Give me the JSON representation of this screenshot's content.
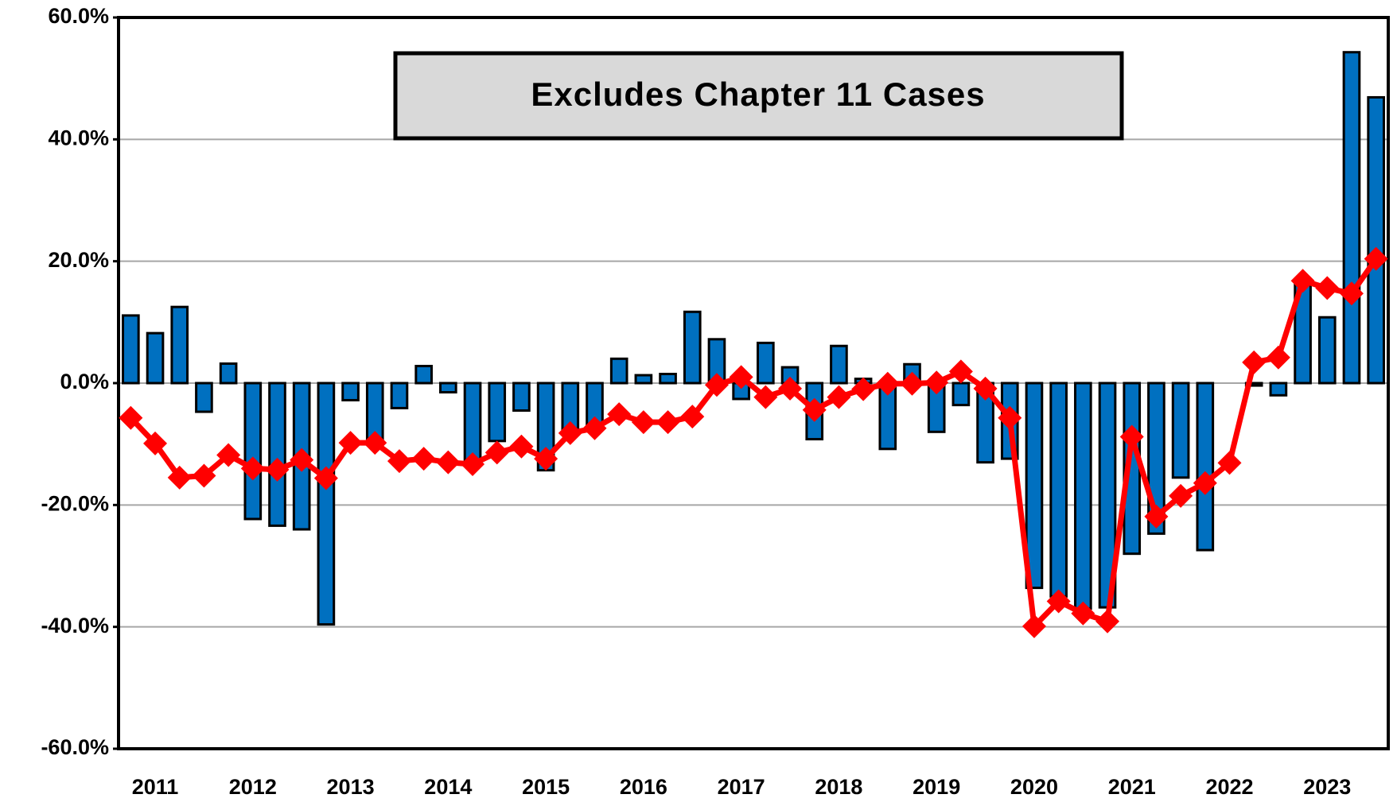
{
  "chart_data": {
    "type": "bar_line",
    "annotation": "Excludes Chapter 11 Cases",
    "categories": [
      null,
      "2011",
      null,
      null,
      null,
      "2012",
      null,
      null,
      null,
      "2013",
      null,
      null,
      null,
      "2014",
      null,
      null,
      null,
      "2015",
      null,
      null,
      null,
      "2016",
      null,
      null,
      null,
      "2017",
      null,
      null,
      null,
      "2018",
      null,
      null,
      null,
      "2019",
      null,
      null,
      null,
      "2020",
      null,
      null,
      null,
      "2021",
      null,
      null,
      null,
      "2022",
      null,
      null,
      null,
      "2023",
      null,
      null
    ],
    "series": [
      {
        "type": "bar",
        "color": "#0070c0",
        "values": [
          11.1,
          8.2,
          12.5,
          -4.7,
          3.2,
          -22.3,
          -23.4,
          -24,
          -39.6,
          -2.8,
          -9.5,
          -4.1,
          2.8,
          -1.5,
          -13,
          -9.5,
          -4.5,
          -14.3,
          -8,
          -7.5,
          4.0,
          1.3,
          1.5,
          11.7,
          7.2,
          -2.6,
          6.6,
          2.6,
          -9.2,
          6.1,
          0.7,
          -10.8,
          3.1,
          -8,
          -3.6,
          -13,
          -12.4,
          -33.6,
          -35,
          -37,
          -36.8,
          -28,
          -24.7,
          -15.5,
          -27.4,
          0,
          -0.4,
          -2,
          16.5,
          10.8,
          54.3,
          46.9
        ]
      },
      {
        "type": "line",
        "color": "#ff0000",
        "values": [
          -5.7,
          -9.9,
          -15.5,
          -15.2,
          -11.8,
          -14,
          -14.2,
          -12.6,
          -15.6,
          -9.8,
          -9.8,
          -12.8,
          -12.4,
          -13,
          -13.3,
          -11.4,
          -10.4,
          -12.4,
          -8.2,
          -7.4,
          -5.1,
          -6.4,
          -6.4,
          -5.5,
          -0.3,
          1.0,
          -2.3,
          -0.9,
          -4.4,
          -2.3,
          -1.0,
          -0.1,
          -0.1,
          0.1,
          1.9,
          -0.9,
          -5.7,
          -39.9,
          -35.8,
          -37.8,
          -39.1,
          -8.8,
          -21.9,
          -18.5,
          -16.4,
          -13.1,
          3.4,
          4.2,
          16.8,
          15.6,
          14.7,
          20.4
        ]
      }
    ],
    "ylim": [
      -60,
      60
    ],
    "yticks": [
      {
        "value": -60,
        "label": "-60.0%"
      },
      {
        "value": -40,
        "label": "-40.0%"
      },
      {
        "value": -20,
        "label": "-20.0%"
      },
      {
        "value": 0,
        "label": "0.0%"
      },
      {
        "value": 20,
        "label": "20.0%"
      },
      {
        "value": 40,
        "label": "40.0%"
      },
      {
        "value": 60,
        "label": "60.0%"
      }
    ],
    "grid": true
  }
}
